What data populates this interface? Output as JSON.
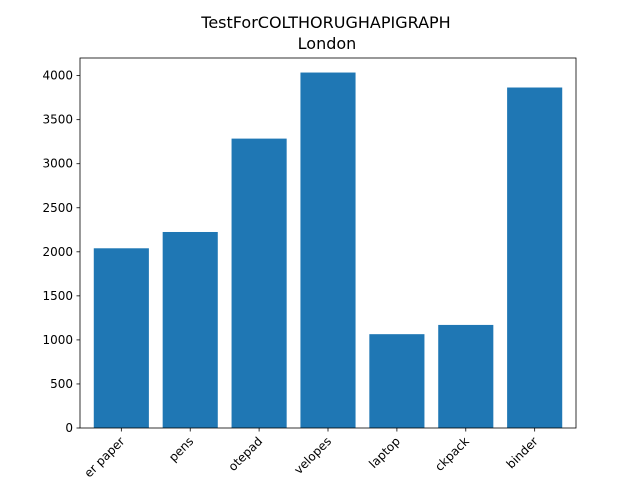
{
  "chart_data": {
    "type": "bar",
    "title": "TestForCOLTHORUGHAPIGRAPH",
    "subtitle": "London",
    "xlabel": "",
    "ylabel": "",
    "categories": [
      "paper paper",
      "pens",
      "notepad",
      "envelopes",
      "laptop",
      "backpack",
      "binder"
    ],
    "visible_tick_text": [
      "er paper",
      "pens",
      "otepad",
      "velopes",
      "laptop",
      "ckpack",
      "binder"
    ],
    "values": [
      2040,
      2225,
      3285,
      4035,
      1065,
      1170,
      3865
    ],
    "ylim": [
      0,
      4200
    ],
    "yticks": [
      0,
      500,
      1000,
      1500,
      2000,
      2500,
      3000,
      3500,
      4000
    ],
    "grid": false,
    "legend": "none",
    "bar_color": "#1f77b4"
  }
}
